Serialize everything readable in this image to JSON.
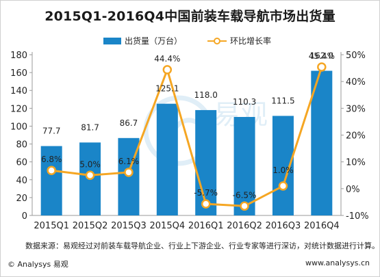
{
  "title": "2015Q1-2016Q4中国前装车载导航市场出货量",
  "legend": {
    "bar_label": "出货量（万台）",
    "line_label": "环比增长率"
  },
  "chart_data": {
    "type": "bar",
    "categories": [
      "2015Q1",
      "2015Q2",
      "2015Q3",
      "2015Q4",
      "2016Q1",
      "2016Q2",
      "2016Q3",
      "2016Q4"
    ],
    "series": [
      {
        "name": "出货量（万台）",
        "type": "bar",
        "axis": "left",
        "values": [
          77.7,
          81.7,
          86.7,
          125.1,
          118.0,
          110.3,
          111.5,
          162.0
        ],
        "labels": [
          "77.7",
          "81.7",
          "86.7",
          "125.1",
          "118.0",
          "110.3",
          "111.5",
          "162.0"
        ]
      },
      {
        "name": "环比增长率",
        "type": "line",
        "axis": "right",
        "values": [
          6.8,
          5.0,
          6.1,
          44.4,
          -5.7,
          -6.5,
          1.0,
          45.4
        ],
        "labels": [
          "6.8%",
          "5.0%",
          "6.1%",
          "44.4%",
          "-5.7%",
          "-6.5%",
          "1.0%",
          "45.4%"
        ]
      }
    ],
    "y_left": {
      "min": 0,
      "max": 180,
      "ticks": [
        0,
        20,
        40,
        60,
        80,
        100,
        120,
        140,
        160,
        180
      ]
    },
    "y_right": {
      "min": -10,
      "max": 50,
      "ticks": [
        -10,
        0,
        10,
        20,
        30,
        40,
        50
      ],
      "tick_labels": [
        "-10%",
        "0%",
        "10%",
        "20%",
        "30%",
        "40%",
        "50%"
      ]
    },
    "legend_position": "top",
    "grid": false,
    "colors": {
      "bar": "#1a85c8",
      "line": "#f5a623",
      "marker_fill": "#ffffff"
    }
  },
  "footnote": "数据来源：易观经过对前装车载导航企业、行业上下游企业、行业专家等进行深访，对统计数据进行计算。",
  "copyright": "© Analysys 易观",
  "website": "www.analysys.cn",
  "watermark": {
    "logo": "易观"
  }
}
